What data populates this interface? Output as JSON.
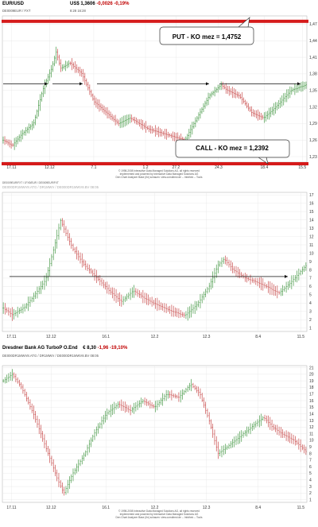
{
  "chart_data": [
    {
      "type": "ohlc",
      "header": {
        "name": "EUR/USD",
        "price": "US$ 1,3606",
        "change": "-0,0026",
        "change_pct": "-0,19%",
        "sub_left": "DE0009EUR / FXT",
        "sub_right": "8:28    16:28"
      },
      "x_ticks": [
        "17.11",
        "12.12",
        "7.1",
        "1.2",
        "27.2",
        "24.3",
        "18.4",
        "15.5"
      ],
      "y_ticks": [
        "1,47",
        "1,44",
        "1,41",
        "1,38",
        "1,35",
        "1,32",
        "1,29",
        "1,26",
        "1,23"
      ],
      "ylim": [
        1.22,
        1.485
      ],
      "put_line": {
        "value": 1.4752,
        "label": "PUT - KO mez = 1,4752"
      },
      "call_line": {
        "value": 1.2392,
        "label": "CALL - KO mez = 1,2392"
      },
      "arrow_level": 1.362,
      "copyright": [
        "© 1998-2008 Interactive Data Managed Solutions AG, all rights reserved",
        "Implemented and powered by Interactive Data Managed Solutions AG",
        "Den Chart Analyzer Base (ihr) schauen: view.comdirect.de -- Infothek -- Tools"
      ],
      "legend_note": "DE0009EUR/FXT  /  1FX5/EUR  /  DE0009EUR/FXT"
    },
    {
      "type": "ohlc",
      "header": {
        "name": "",
        "price": "",
        "change": "",
        "change_pct": "",
        "sub_left": "DE000DR1MWV8.ATG  /  DR1MWV  /  DE000DR1MWV8.BV  08:05",
        "sub_right": ""
      },
      "x_ticks": [
        "17.11",
        "12.12",
        "16.1",
        "12.2",
        "12.3",
        "8.4",
        "11.5"
      ],
      "y_ticks": [
        "17",
        "16",
        "15",
        "14",
        "13",
        "12",
        "11",
        "10",
        "9",
        "8",
        "7",
        "6",
        "5",
        "4",
        "3",
        "2",
        "1"
      ],
      "ylim": [
        0.6,
        17.3
      ],
      "arrow_level": 7.2,
      "copyright": [],
      "legend_note": ""
    },
    {
      "type": "ohlc",
      "header": {
        "name": "Dresdner Bank AG TurboP O.End",
        "price": "€ 8,30",
        "change": "-1,96",
        "change_pct": "-19,10%",
        "sub_left": "DE000DR1MWV8.ATG  /  DR1MWV  /  DE000DR1MWV8.BV  08:05",
        "sub_right": ""
      },
      "x_ticks": [
        "17.11",
        "12.12",
        "16.1",
        "12.2",
        "12.3",
        "8.4",
        "11.5"
      ],
      "y_ticks": [
        "21",
        "20",
        "19",
        "18",
        "17",
        "16",
        "15",
        "14",
        "13",
        "12",
        "11",
        "10",
        "9",
        "8",
        "7",
        "6",
        "5",
        "4",
        "3",
        "2",
        "1"
      ],
      "ylim": [
        0.6,
        21.3
      ],
      "copyright": [
        "© 1998-2008 Interactive Data Managed Solutions AG, all rights reserved",
        "Implemented and powered by Interactive Data Managed Solutions AG",
        "Den Chart Analyzer Base (ihr) schauen: view.comdirect.de -- Infothek -- Tools"
      ],
      "legend_note": ""
    }
  ]
}
